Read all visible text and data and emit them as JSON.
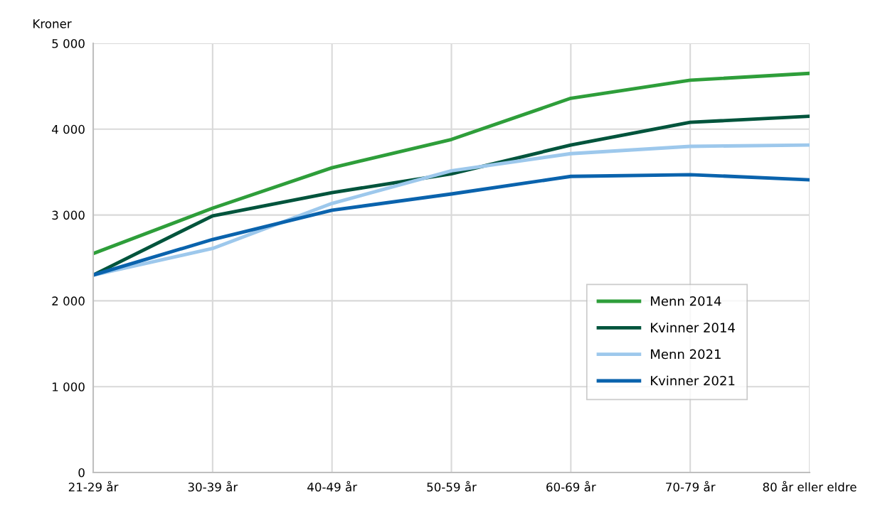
{
  "chart_data": {
    "type": "line",
    "ylabel": "Kroner",
    "categories": [
      "21-29 år",
      "30-39 år",
      "40-49 år",
      "50-59 år",
      "60-69 år",
      "70-79 år",
      "80 år eller eldre"
    ],
    "series": [
      {
        "name": "Menn 2014",
        "color": "#2e9e3a",
        "values": [
          2550,
          3080,
          3550,
          3880,
          4360,
          4570,
          4650
        ]
      },
      {
        "name": "Kvinner 2014",
        "color": "#00543c",
        "values": [
          2300,
          2990,
          3260,
          3480,
          3815,
          4080,
          4150
        ]
      },
      {
        "name": "Menn 2021",
        "color": "#9dc8ec",
        "values": [
          2300,
          2610,
          3135,
          3515,
          3715,
          3800,
          3815
        ]
      },
      {
        "name": "Kvinner 2021",
        "color": "#0a63ad",
        "values": [
          2300,
          2715,
          3055,
          3245,
          3450,
          3470,
          3410
        ]
      }
    ],
    "ylim": [
      0,
      5000
    ],
    "yticks": [
      0,
      {
        "value": 1000,
        "label": "1 000"
      },
      {
        "value": 2000,
        "label": "2 000"
      },
      {
        "value": 3000,
        "label": "3 000"
      },
      {
        "value": 4000,
        "label": "4 000"
      },
      {
        "value": 5000,
        "label": "5 000"
      }
    ],
    "grid": true,
    "legend": "bottom right",
    "marker": "none",
    "line_style": "solid"
  }
}
